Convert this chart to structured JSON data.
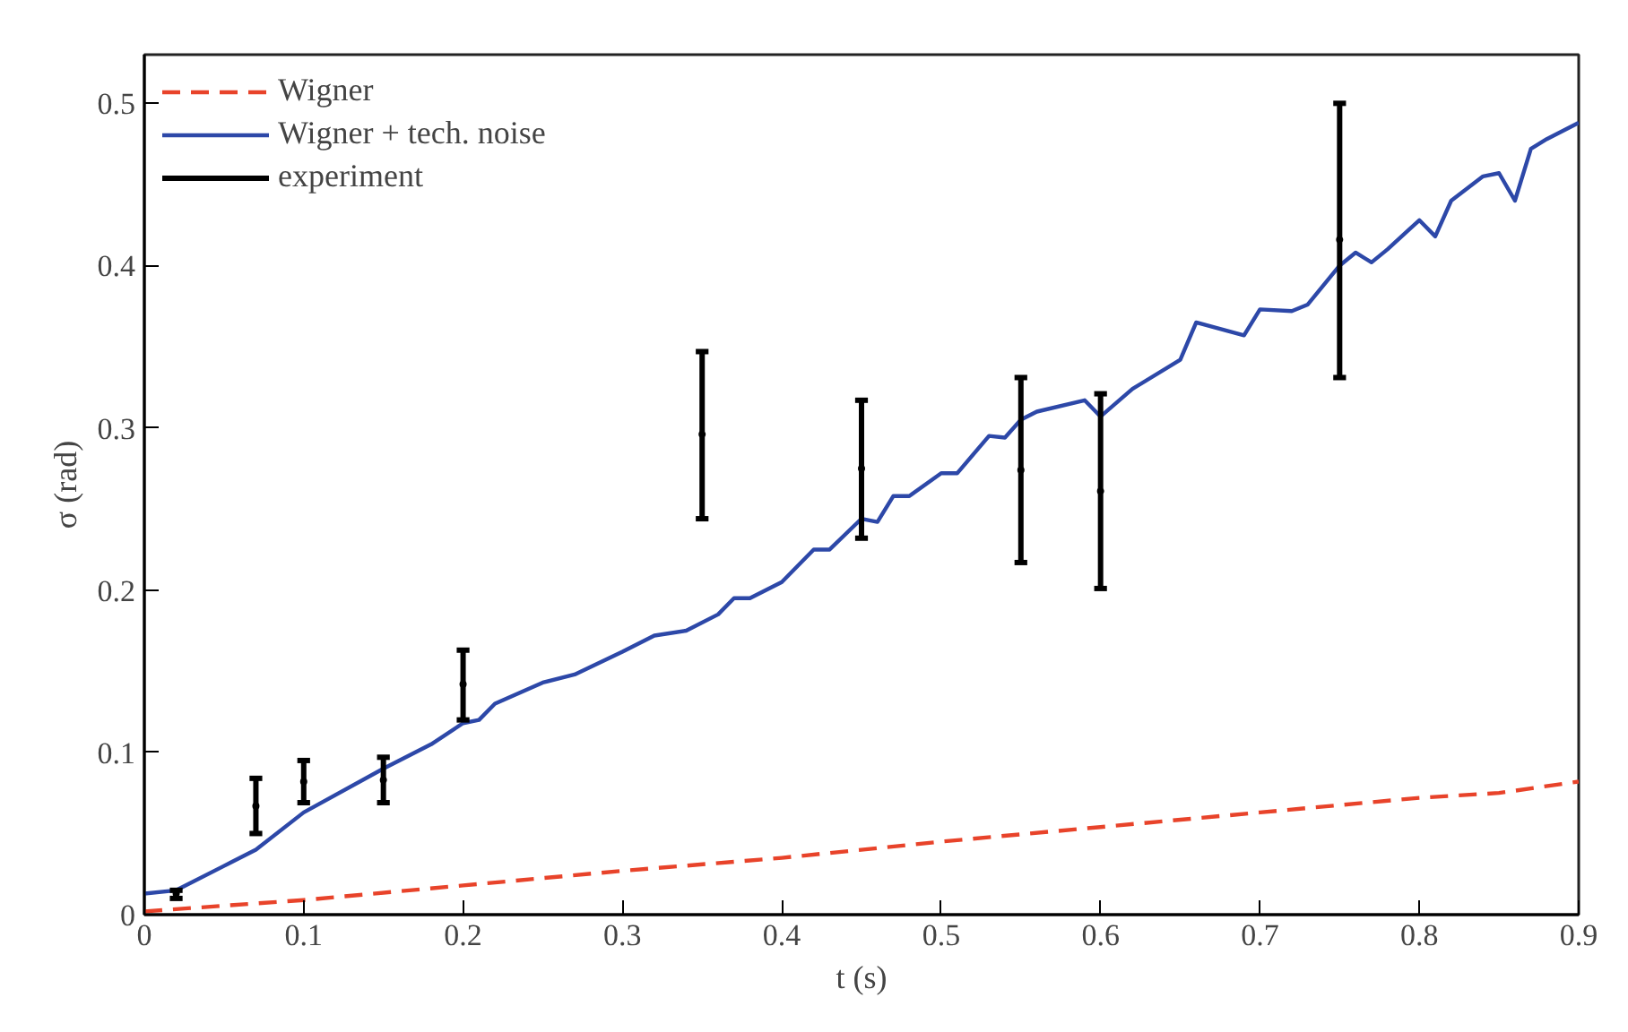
{
  "chart_data": {
    "type": "line",
    "xlabel": "t (s)",
    "ylabel": "σ (rad)",
    "xlim": [
      0,
      0.9
    ],
    "ylim": [
      0,
      0.53
    ],
    "xticks": [
      0,
      0.1,
      0.2,
      0.3,
      0.4,
      0.5,
      0.6,
      0.7,
      0.8,
      0.9
    ],
    "yticks": [
      0,
      0.1,
      0.2,
      0.3,
      0.4,
      0.5
    ],
    "grid": false,
    "legend": "top left",
    "series": [
      {
        "name": "Wigner",
        "color": "#e8432a",
        "line_style": "dashed",
        "x": [
          0,
          0.1,
          0.2,
          0.3,
          0.4,
          0.5,
          0.6,
          0.7,
          0.8,
          0.85,
          0.9
        ],
        "values": [
          0.002,
          0.009,
          0.018,
          0.027,
          0.035,
          0.045,
          0.054,
          0.063,
          0.072,
          0.075,
          0.082
        ]
      },
      {
        "name": "Wigner + tech. noise",
        "color": "#2d48a8",
        "line_style": "solid",
        "x": [
          0,
          0.02,
          0.05,
          0.07,
          0.1,
          0.15,
          0.18,
          0.2,
          0.21,
          0.22,
          0.25,
          0.27,
          0.3,
          0.32,
          0.34,
          0.36,
          0.37,
          0.38,
          0.4,
          0.42,
          0.43,
          0.45,
          0.46,
          0.47,
          0.48,
          0.5,
          0.51,
          0.53,
          0.54,
          0.55,
          0.56,
          0.59,
          0.6,
          0.62,
          0.65,
          0.66,
          0.69,
          0.7,
          0.72,
          0.73,
          0.75,
          0.76,
          0.77,
          0.78,
          0.8,
          0.81,
          0.82,
          0.84,
          0.85,
          0.86,
          0.87,
          0.88,
          0.9
        ],
        "values": [
          0.013,
          0.015,
          0.03,
          0.04,
          0.063,
          0.09,
          0.105,
          0.118,
          0.12,
          0.13,
          0.143,
          0.148,
          0.162,
          0.172,
          0.175,
          0.185,
          0.195,
          0.195,
          0.205,
          0.225,
          0.225,
          0.244,
          0.242,
          0.258,
          0.258,
          0.272,
          0.272,
          0.295,
          0.294,
          0.305,
          0.31,
          0.317,
          0.307,
          0.324,
          0.342,
          0.365,
          0.357,
          0.373,
          0.372,
          0.376,
          0.4,
          0.408,
          0.402,
          0.41,
          0.428,
          0.418,
          0.44,
          0.455,
          0.457,
          0.44,
          0.472,
          0.478,
          0.488
        ]
      },
      {
        "name": "experiment",
        "type": "scatter",
        "marker": "none",
        "color": "#000000",
        "x": [
          0.02,
          0.07,
          0.1,
          0.15,
          0.2,
          0.35,
          0.45,
          0.55,
          0.6,
          0.75
        ],
        "values": [
          0.013,
          0.067,
          0.082,
          0.083,
          0.142,
          0.296,
          0.275,
          0.274,
          0.261,
          0.416
        ],
        "errors": [
          [
            0.01,
            0.015
          ],
          [
            0.05,
            0.084
          ],
          [
            0.069,
            0.095
          ],
          [
            0.069,
            0.097
          ],
          [
            0.12,
            0.163
          ],
          [
            0.244,
            0.347
          ],
          [
            0.232,
            0.317
          ],
          [
            0.217,
            0.331
          ],
          [
            0.201,
            0.321
          ],
          [
            0.331,
            0.5
          ]
        ]
      }
    ]
  }
}
